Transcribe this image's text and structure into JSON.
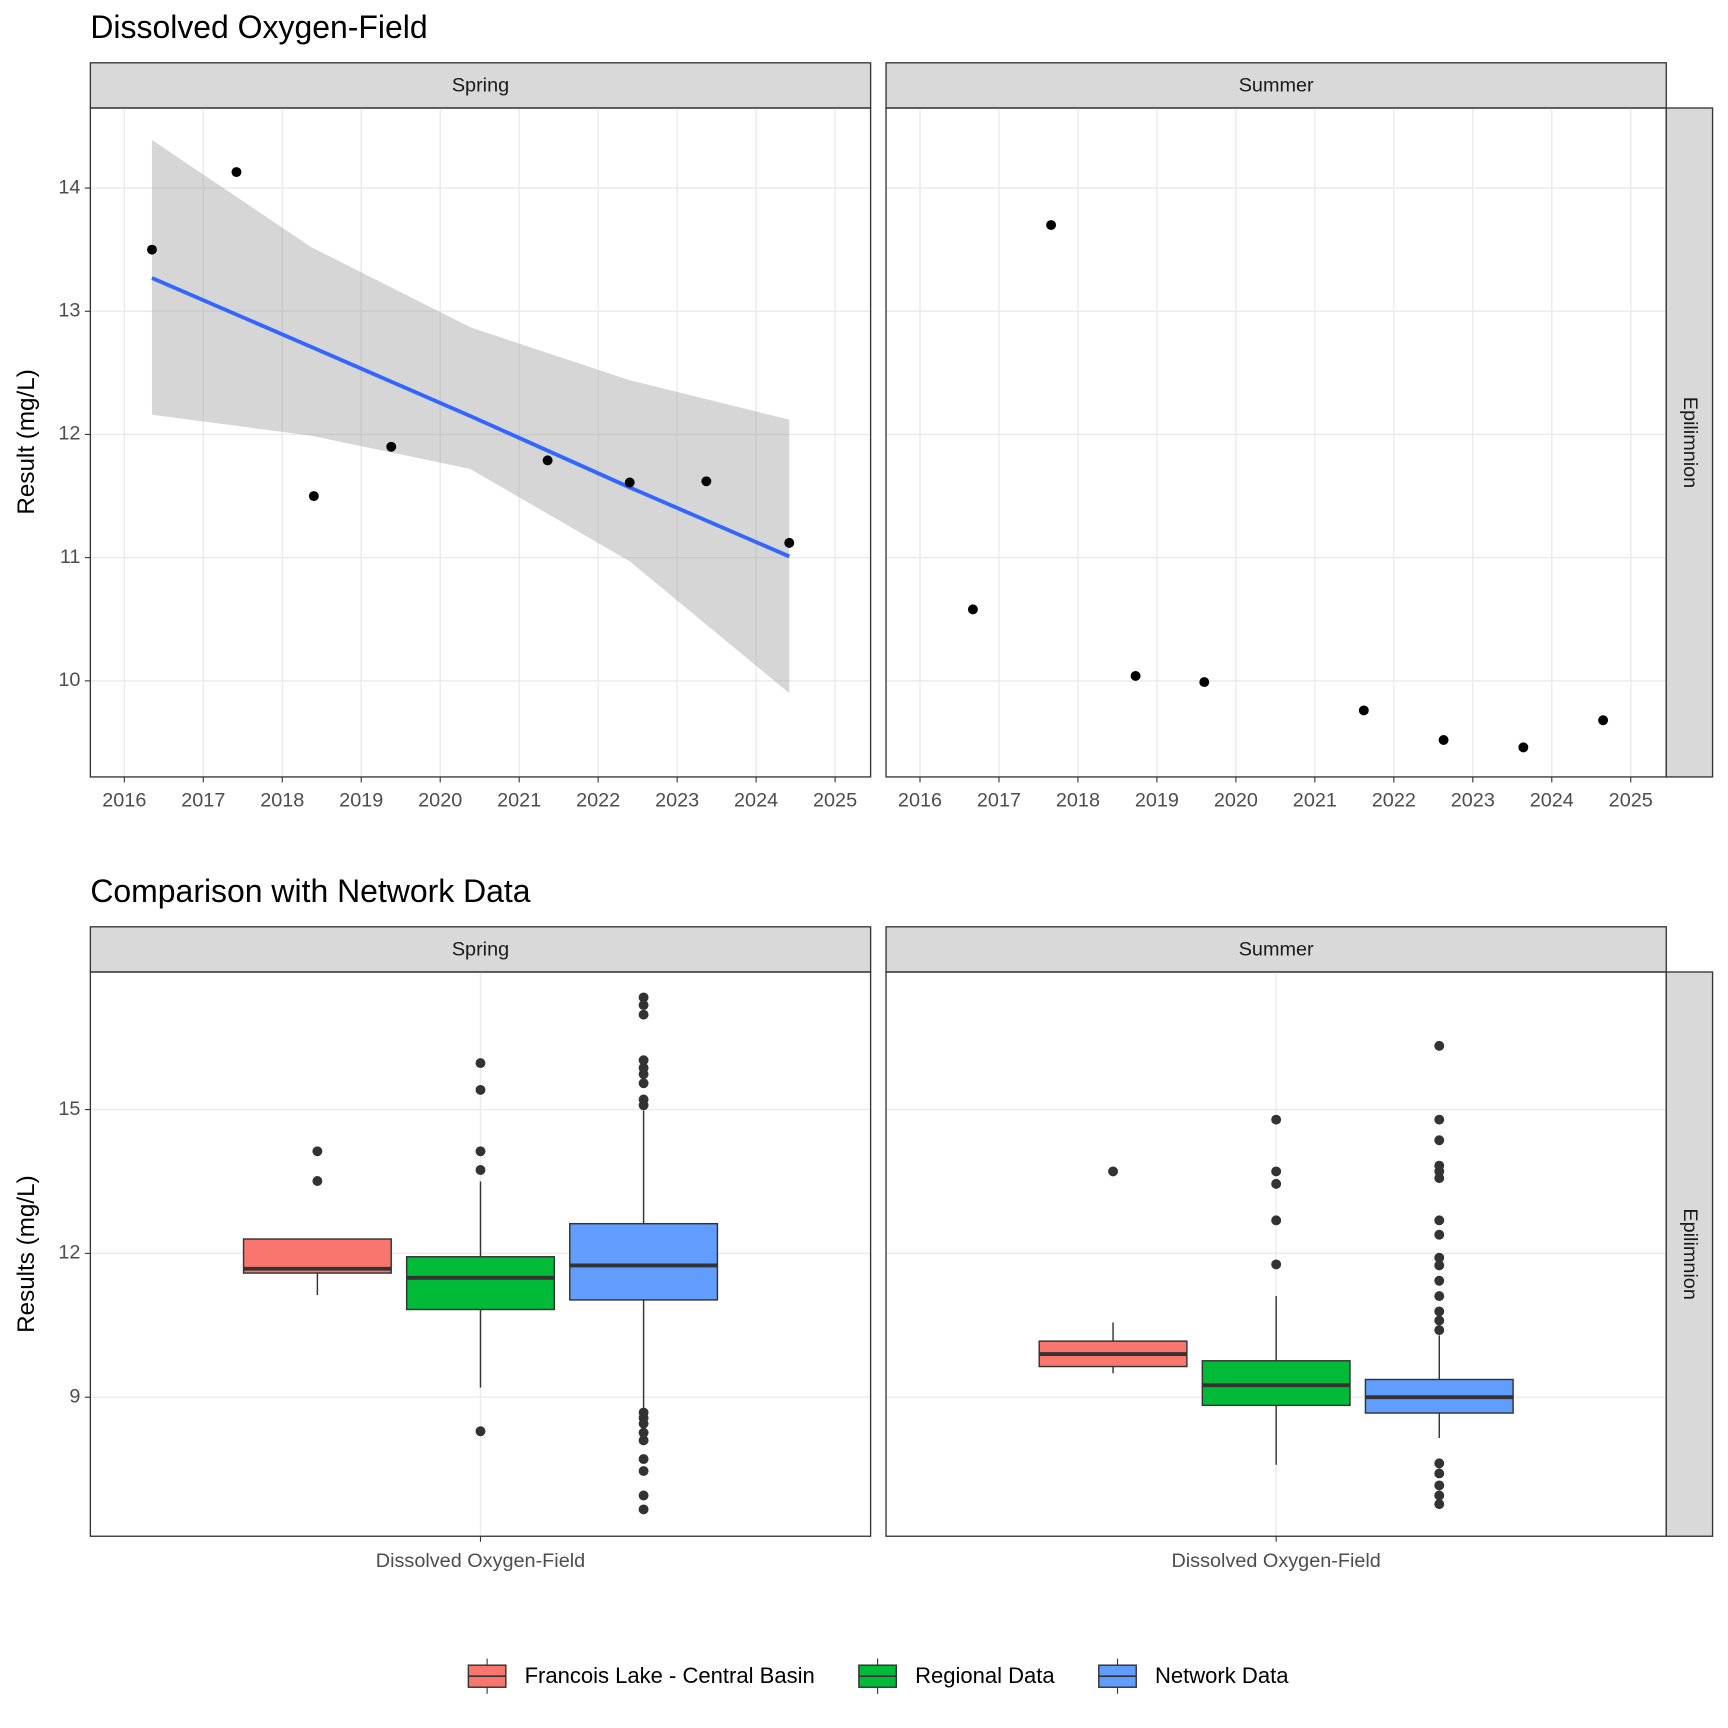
{
  "chart_data": [
    {
      "type": "scatter",
      "title": "Dissolved Oxygen-Field",
      "y_label": "Result (mg/L)",
      "strip_right": "Epilimnion",
      "point_color": "#000000",
      "xlim": [
        2015.57,
        2025.45
      ],
      "xticks": [
        2016,
        2017,
        2018,
        2019,
        2020,
        2021,
        2022,
        2023,
        2024,
        2025
      ],
      "ylim": [
        9.22,
        14.65
      ],
      "yticks": [
        10,
        11,
        12,
        13,
        14
      ],
      "grid": true,
      "panels": [
        {
          "name": "Spring",
          "x": [
            2016.35,
            2017.42,
            2018.4,
            2019.38,
            2021.36,
            2022.4,
            2023.37,
            2024.42
          ],
          "values": [
            13.5,
            14.13,
            11.5,
            11.9,
            11.79,
            11.61,
            11.62,
            11.12
          ],
          "trend": {
            "color": "#3366ff",
            "band_color": "#999999",
            "x": [
              2016.35,
              2018.37,
              2020.38,
              2022.4,
              2024.42
            ],
            "values": [
              13.27,
              12.71,
              12.15,
              11.57,
              11.01
            ],
            "lower": [
              12.16,
              11.99,
              11.72,
              10.97,
              9.9
            ],
            "upper": [
              14.39,
              13.52,
              12.87,
              12.44,
              12.12
            ]
          }
        },
        {
          "name": "Summer",
          "x": [
            2016.67,
            2017.66,
            2018.73,
            2019.6,
            2021.62,
            2022.63,
            2023.64,
            2024.65
          ],
          "values": [
            10.58,
            13.7,
            10.04,
            9.99,
            9.76,
            9.52,
            9.46,
            9.68
          ]
        }
      ]
    },
    {
      "type": "box",
      "title": "Comparison with Network Data",
      "y_label": "Results (mg/L)",
      "strip_right": "Epilimnion",
      "category": "Dissolved Oxygen-Field",
      "ylim": [
        6.1,
        17.87
      ],
      "yticks": [
        9,
        12,
        15
      ],
      "grid": true,
      "series": [
        {
          "name": "Francois Lake - Central Basin",
          "color": "#f8766d"
        },
        {
          "name": "Regional Data",
          "color": "#00ba38"
        },
        {
          "name": "Network Data",
          "color": "#619cff"
        }
      ],
      "panels": [
        {
          "name": "Spring",
          "boxes": [
            {
              "whisker_low": 11.13,
              "q1": 11.59,
              "median": 11.68,
              "q3": 12.3,
              "whisker_high": 12.3,
              "outliers": [
                14.13,
                13.51
              ]
            },
            {
              "whisker_low": 9.2,
              "q1": 10.83,
              "median": 11.49,
              "q3": 11.93,
              "whisker_high": 13.5,
              "outliers": [
                15.97,
                15.41,
                14.13,
                13.74,
                8.29
              ]
            },
            {
              "whisker_low": 8.72,
              "q1": 11.03,
              "median": 11.75,
              "q3": 12.62,
              "whisker_high": 14.98,
              "outliers": [
                17.34,
                17.18,
                16.98,
                16.03,
                15.87,
                15.74,
                15.55,
                15.21,
                15.09,
                8.68,
                8.57,
                8.45,
                8.26,
                8.1,
                7.71,
                7.46,
                6.95,
                6.66
              ]
            }
          ]
        },
        {
          "name": "Summer",
          "boxes": [
            {
              "whisker_low": 9.5,
              "q1": 9.64,
              "median": 9.9,
              "q3": 10.17,
              "whisker_high": 10.56,
              "outliers": [
                13.71
              ]
            },
            {
              "whisker_low": 7.59,
              "q1": 8.83,
              "median": 9.25,
              "q3": 9.76,
              "whisker_high": 11.11,
              "outliers": [
                14.79,
                13.71,
                13.45,
                12.69,
                11.77
              ]
            },
            {
              "whisker_low": 8.15,
              "q1": 8.67,
              "median": 9.0,
              "q3": 9.37,
              "whisker_high": 10.29,
              "outliers": [
                16.33,
                14.79,
                14.36,
                13.83,
                13.71,
                13.57,
                12.69,
                12.39,
                11.91,
                11.75,
                11.43,
                11.11,
                10.79,
                10.6,
                10.4,
                7.62,
                7.41,
                7.16,
                6.95,
                6.77
              ]
            }
          ]
        }
      ]
    }
  ]
}
